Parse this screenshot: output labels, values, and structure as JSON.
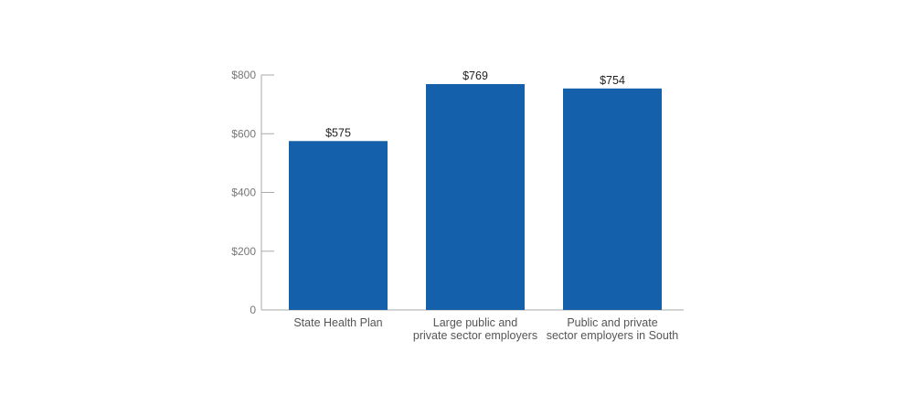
{
  "chart_data": {
    "type": "bar",
    "categories": [
      [
        "State Health Plan"
      ],
      [
        "Large public and",
        "private sector employers"
      ],
      [
        "Public and private",
        "sector employers in South"
      ]
    ],
    "values": [
      575,
      769,
      754
    ],
    "data_labels": [
      "$575",
      "$769",
      "$754"
    ],
    "yticks": [
      0,
      200,
      400,
      600,
      800
    ],
    "ytick_labels": [
      "0",
      "$200",
      "$400",
      "$600",
      "$800"
    ],
    "ylim": [
      0,
      800
    ],
    "grid": false,
    "title": "",
    "xlabel": "",
    "ylabel": ""
  },
  "colors": {
    "bar": "#1460aa",
    "axis": "#aaaaaa"
  }
}
